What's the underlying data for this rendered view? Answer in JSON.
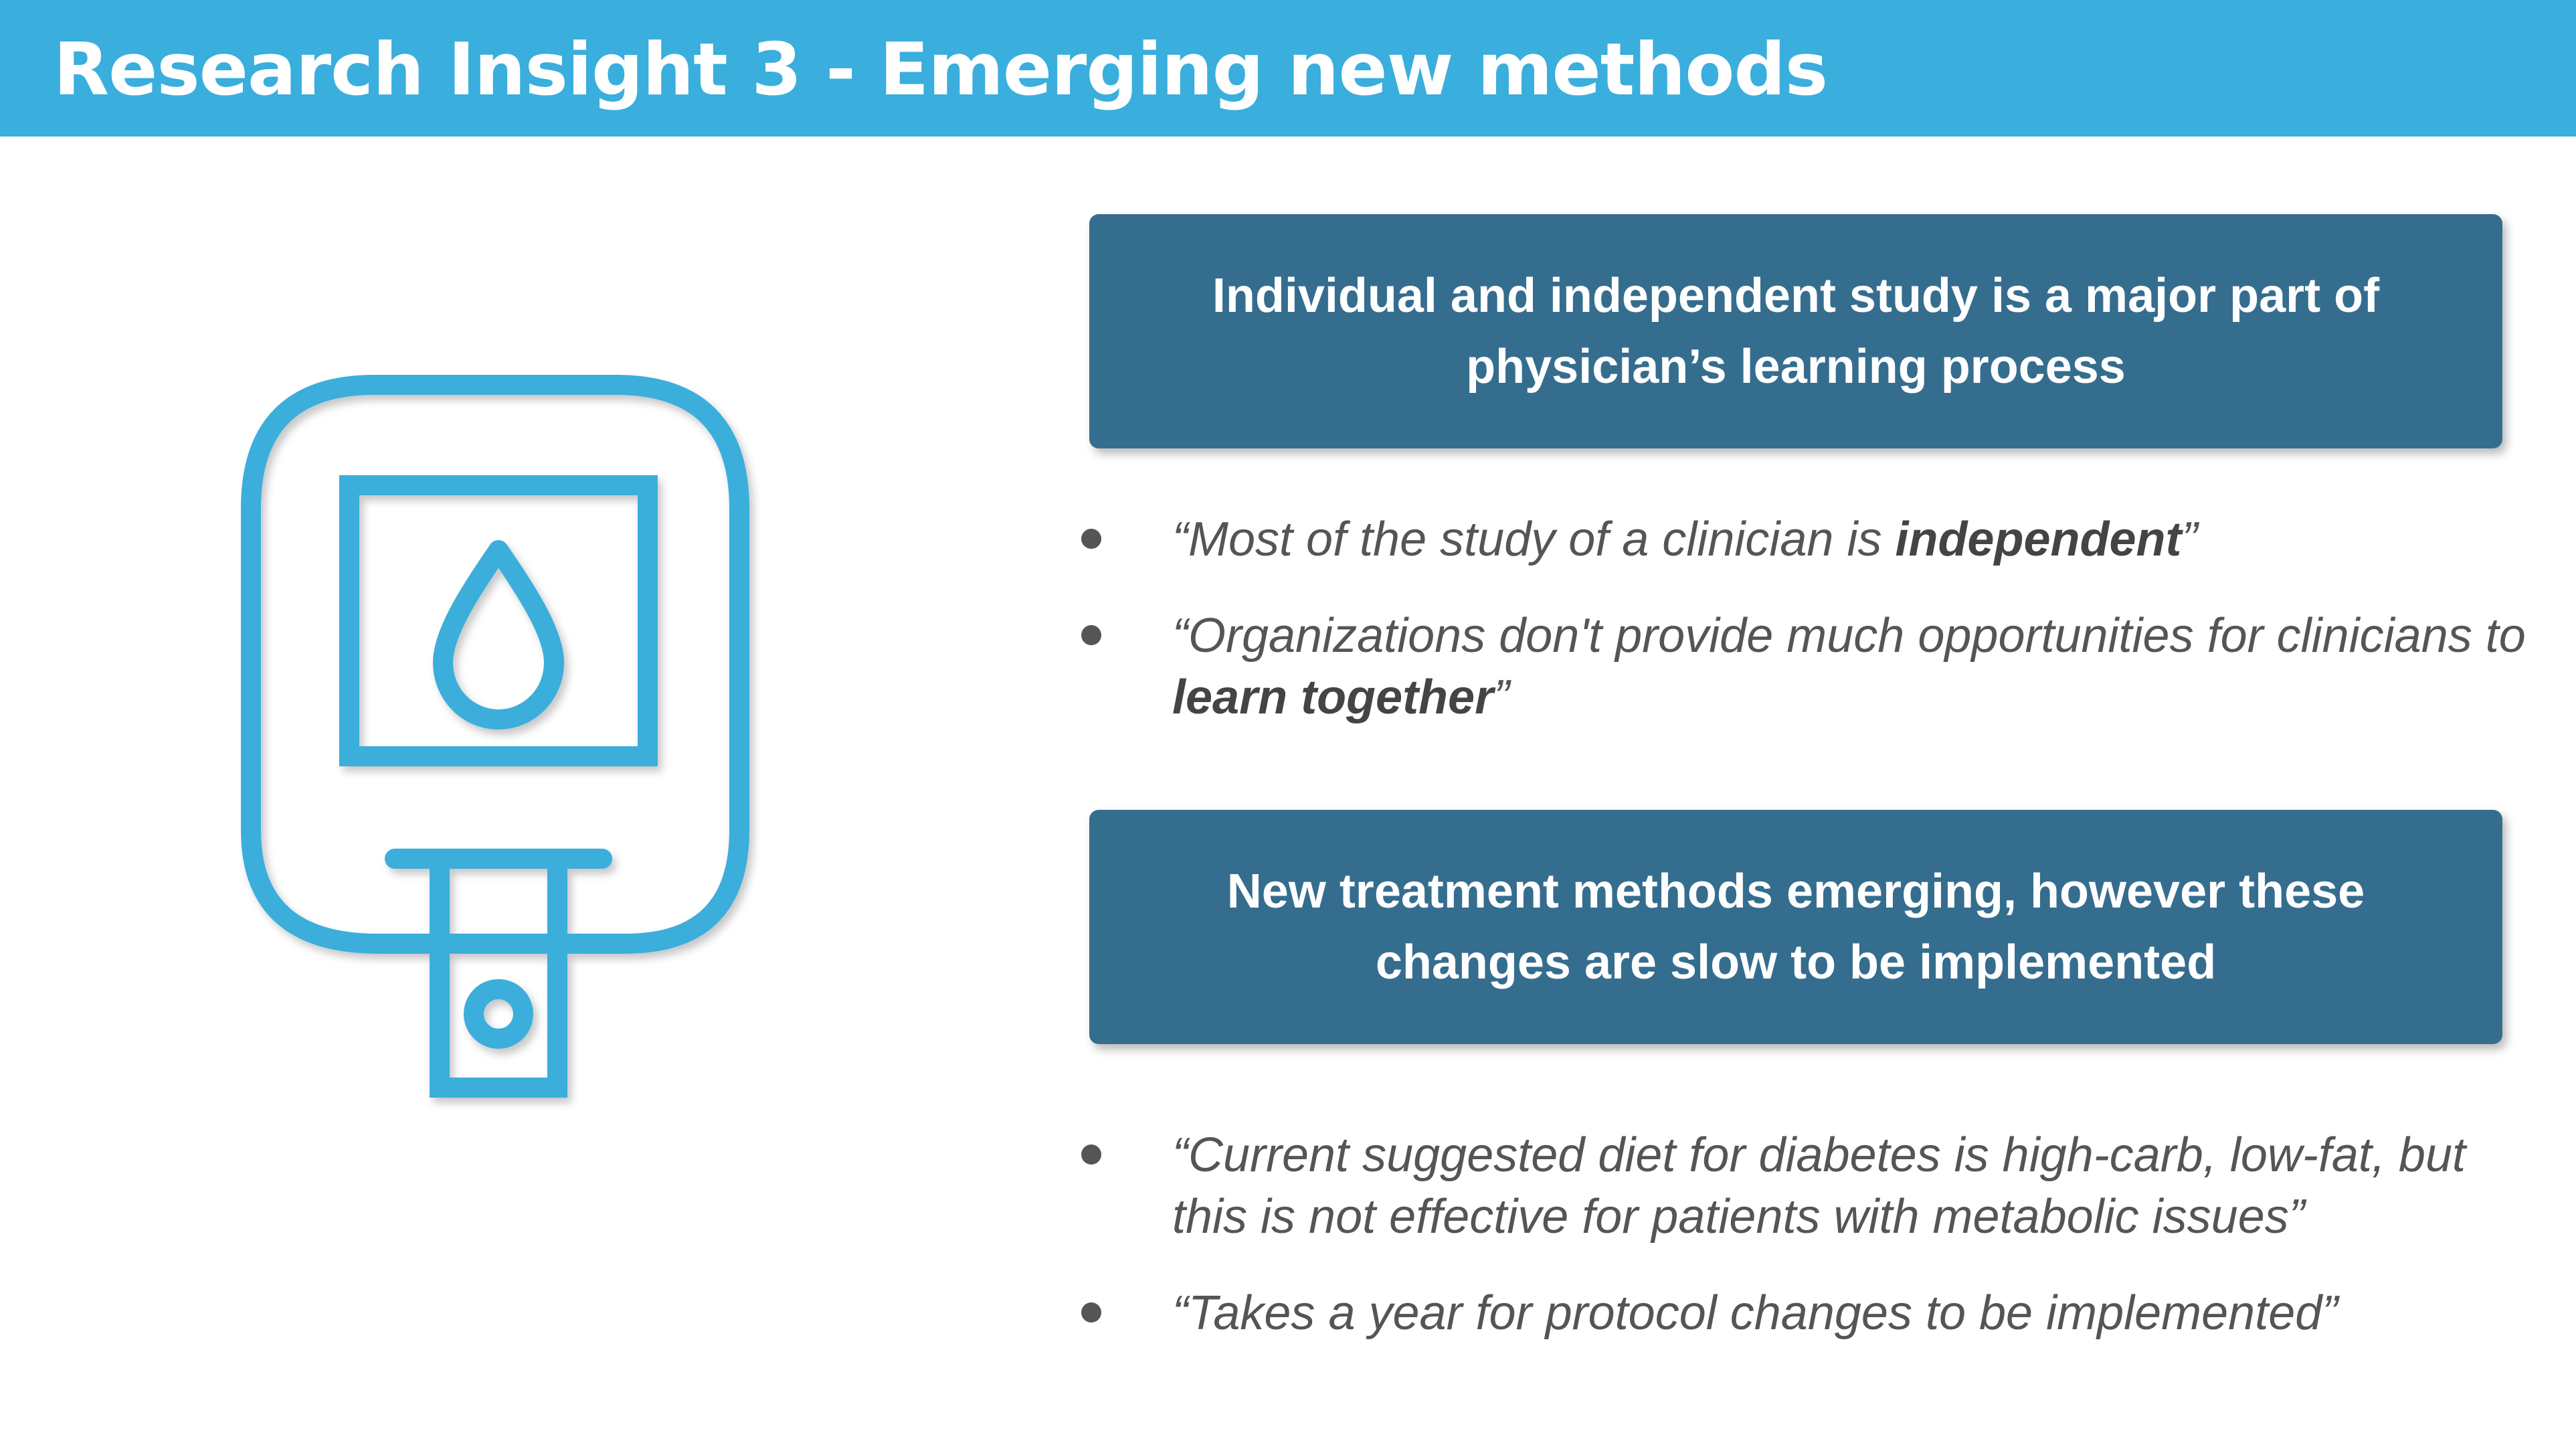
{
  "header": {
    "title": "Research Insight 3 - Emerging new methods",
    "background_color": "#3aaedc"
  },
  "illustration": {
    "icon": "glucose-meter-icon",
    "color": "#3aaedc"
  },
  "sections": [
    {
      "heading": "Individual and independent study is a major part of physician’s learning process",
      "quotes": [
        {
          "pre": "“Most of the study of a clinician is ",
          "bold": "independent",
          "post": "”"
        },
        {
          "pre": "“Organizations don't provide much opportunities for clinicians to ",
          "bold": "learn together",
          "post": "”"
        }
      ]
    },
    {
      "heading": "New treatment methods emerging, however these changes are slow to be implemented",
      "quotes": [
        {
          "pre": "“Current suggested diet for diabetes is high-carb, low-fat, but this is not effective for patients with metabolic issues”",
          "bold": "",
          "post": ""
        },
        {
          "pre": "“Takes a year for protocol changes to be implemented”",
          "bold": "",
          "post": ""
        }
      ]
    }
  ],
  "colors": {
    "box": "#356d8f",
    "quote_text": "#555555"
  }
}
